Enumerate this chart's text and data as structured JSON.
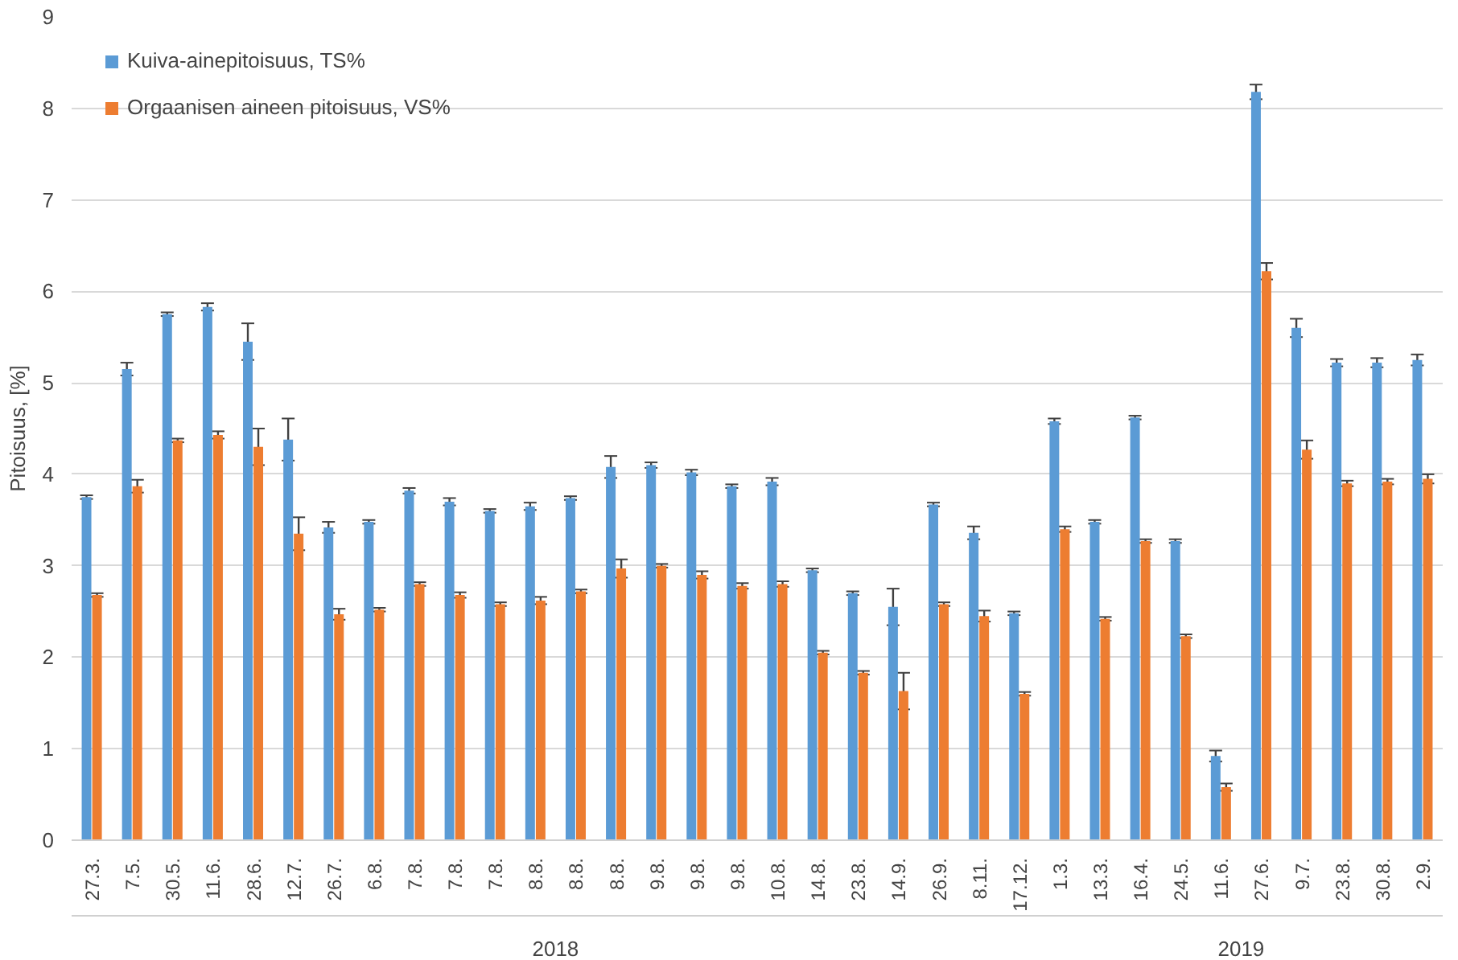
{
  "chart_data": {
    "type": "bar",
    "ylabel": "Pitoisuus, [%]",
    "categories": [
      "27.3.",
      "7.5.",
      "30.5.",
      "11.6.",
      "28.6.",
      "12.7.",
      "26.7.",
      "6.8.",
      "7.8.",
      "7.8.",
      "7.8.",
      "8.8.",
      "8.8.",
      "8.8.",
      "9.8.",
      "9.8.",
      "9.8.",
      "10.8.",
      "14.8.",
      "23.8.",
      "14.9.",
      "26.9.",
      "8.11.",
      "17.12.",
      "1.3.",
      "13.3.",
      "16.4.",
      "24.5.",
      "11.6.",
      "27.6.",
      "9.7.",
      "23.8.",
      "30.8.",
      "2.9."
    ],
    "series": [
      {
        "name": "Kuiva-ainepitoisuus, TS%",
        "color": "#5b9bd5",
        "values": [
          3.75,
          5.15,
          5.75,
          5.83,
          5.45,
          4.38,
          3.42,
          3.48,
          3.82,
          3.7,
          3.6,
          3.65,
          3.74,
          4.08,
          4.1,
          4.02,
          3.87,
          3.92,
          2.95,
          2.7,
          2.55,
          3.67,
          3.36,
          2.48,
          4.58,
          3.48,
          4.62,
          3.27,
          0.92,
          8.18,
          5.6,
          5.22,
          5.22,
          5.25
        ],
        "errors": [
          0.02,
          0.07,
          0.02,
          0.04,
          0.2,
          0.23,
          0.06,
          0.02,
          0.03,
          0.04,
          0.02,
          0.04,
          0.02,
          0.12,
          0.03,
          0.03,
          0.02,
          0.04,
          0.02,
          0.02,
          0.2,
          0.02,
          0.07,
          0.02,
          0.03,
          0.02,
          0.02,
          0.02,
          0.06,
          0.08,
          0.1,
          0.04,
          0.05,
          0.06
        ]
      },
      {
        "name": "Orgaanisen aineen pitoisuus, VS%",
        "color": "#ed7d31",
        "values": [
          2.68,
          3.87,
          4.37,
          4.43,
          4.3,
          3.35,
          2.47,
          2.52,
          2.8,
          2.68,
          2.58,
          2.62,
          2.72,
          2.97,
          3.0,
          2.9,
          2.78,
          2.8,
          2.05,
          1.83,
          1.63,
          2.58,
          2.45,
          1.6,
          3.4,
          2.42,
          3.27,
          2.23,
          0.58,
          6.22,
          4.27,
          3.9,
          3.92,
          3.95
        ],
        "errors": [
          0.02,
          0.07,
          0.02,
          0.04,
          0.2,
          0.18,
          0.06,
          0.02,
          0.02,
          0.03,
          0.02,
          0.04,
          0.02,
          0.1,
          0.02,
          0.04,
          0.03,
          0.03,
          0.02,
          0.02,
          0.2,
          0.02,
          0.06,
          0.02,
          0.03,
          0.02,
          0.02,
          0.02,
          0.04,
          0.09,
          0.1,
          0.03,
          0.03,
          0.05
        ]
      }
    ],
    "ylim": [
      0,
      9
    ],
    "yticks": [
      0,
      1,
      2,
      3,
      4,
      5,
      6,
      7,
      8,
      9
    ],
    "grid": "y",
    "legend": "top left",
    "annotations": [
      "2018",
      "2019"
    ]
  }
}
